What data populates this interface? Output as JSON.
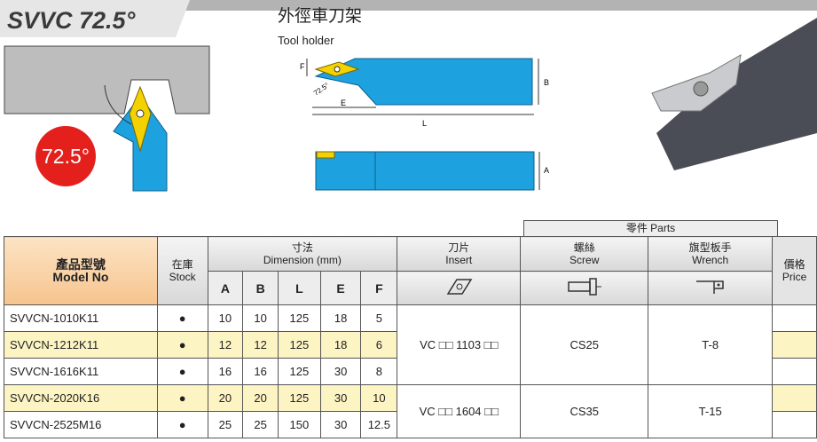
{
  "header": {
    "title": "SVVC 72.5°",
    "angle_badge": "72.5°",
    "subtitle_zh": "外徑車刀架",
    "subtitle_en": "Tool holder"
  },
  "diagram_labels": {
    "F": "F",
    "B": "B",
    "E": "E",
    "L": "L",
    "A": "A",
    "angle": "72.5°"
  },
  "table": {
    "parts_group": "零件 Parts",
    "headers": {
      "model": {
        "zh": "產品型號",
        "en": "Model No"
      },
      "stock": {
        "zh": "在庫",
        "en": "Stock"
      },
      "dimension": {
        "zh": "寸法",
        "en": "Dimension (mm)"
      },
      "dims": [
        "A",
        "B",
        "L",
        "E",
        "F"
      ],
      "insert": {
        "zh": "刀片",
        "en": "Insert"
      },
      "screw": {
        "zh": "螺絲",
        "en": "Screw"
      },
      "wrench": {
        "zh": "旗型板手",
        "en": "Wrench"
      },
      "price": {
        "zh": "價格",
        "en": "Price"
      }
    },
    "rows": [
      [
        "SVVCN-1010K11",
        "●",
        10,
        10,
        125,
        18,
        5
      ],
      [
        "SVVCN-1212K11",
        "●",
        12,
        12,
        125,
        18,
        6
      ],
      [
        "SVVCN-1616K11",
        "●",
        16,
        16,
        125,
        30,
        8
      ],
      [
        "SVVCN-2020K16",
        "●",
        20,
        20,
        125,
        30,
        10
      ],
      [
        "SVVCN-2525M16",
        "●",
        25,
        25,
        150,
        30,
        12.5
      ]
    ],
    "groups": [
      {
        "insert": "VC □□ 1103 □□",
        "screw": "CS25",
        "wrench": "T-8"
      },
      {
        "insert": "VC □□ 1604 □□",
        "screw": "CS35",
        "wrench": "T-15"
      }
    ]
  }
}
